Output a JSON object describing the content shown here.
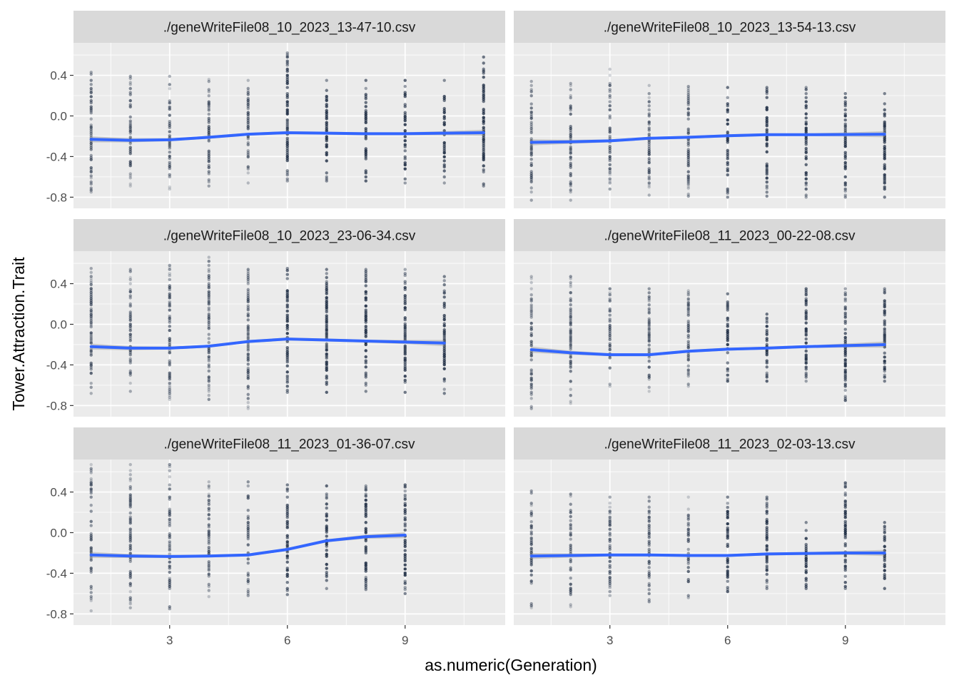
{
  "chart_data": {
    "type": "scatter",
    "facet_layout": "3 rows x 2 columns",
    "xlabel": "as.numeric(Generation)",
    "ylabel": "Tower.Attraction.Trait",
    "xlim": [
      0.55,
      11.55
    ],
    "ylim": [
      -0.91,
      0.72
    ],
    "x_ticks": [
      3,
      6,
      9
    ],
    "y_ticks": [
      0.4,
      0.0,
      -0.4,
      -0.8
    ],
    "y_tick_labels": [
      "0.4",
      "0.0",
      "-0.4",
      "-0.8"
    ],
    "grid": true,
    "colors": {
      "panel_background": "#ebebeb",
      "strip_background": "#d9d9d9",
      "gridline": "#ffffff",
      "point": "#1b2a41",
      "smooth_line": "#3366ff",
      "confidence_band": "#999999"
    },
    "panels": [
      {
        "strip": "./geneWriteFile08_10_2023_13-47-10.csv",
        "generations": [
          1,
          2,
          3,
          4,
          5,
          6,
          7,
          8,
          9,
          10,
          11
        ],
        "point_ymin": [
          -0.75,
          -0.69,
          -0.72,
          -0.69,
          -0.66,
          -0.64,
          -0.64,
          -0.64,
          -0.66,
          -0.66,
          -0.69
        ],
        "point_ymax": [
          0.43,
          0.39,
          0.39,
          0.36,
          0.35,
          0.62,
          0.35,
          0.35,
          0.35,
          0.35,
          0.58
        ],
        "trend_x": [
          1,
          2,
          3,
          4,
          5,
          6,
          7,
          8,
          9,
          10,
          11
        ],
        "trend_y": [
          -0.23,
          -0.24,
          -0.235,
          -0.21,
          -0.18,
          -0.165,
          -0.17,
          -0.175,
          -0.175,
          -0.17,
          -0.165
        ]
      },
      {
        "strip": "./geneWriteFile08_10_2023_13-54-13.csv",
        "generations": [
          1,
          2,
          3,
          4,
          5,
          6,
          7,
          8,
          9,
          10
        ],
        "point_ymin": [
          -0.83,
          -0.83,
          -0.72,
          -0.78,
          -0.79,
          -0.8,
          -0.79,
          -0.8,
          -0.8,
          -0.8
        ],
        "point_ymax": [
          0.34,
          0.32,
          0.46,
          0.3,
          0.29,
          0.28,
          0.28,
          0.28,
          0.22,
          0.22
        ],
        "trend_x": [
          1,
          2,
          3,
          4,
          5,
          6,
          7,
          8,
          9,
          10
        ],
        "trend_y": [
          -0.26,
          -0.255,
          -0.245,
          -0.22,
          -0.21,
          -0.195,
          -0.185,
          -0.185,
          -0.183,
          -0.18
        ]
      },
      {
        "strip": "./geneWriteFile08_10_2023_23-06-34.csv",
        "generations": [
          1,
          2,
          3,
          4,
          5,
          6,
          7,
          8,
          9,
          10
        ],
        "point_ymin": [
          -0.68,
          -0.66,
          -0.74,
          -0.74,
          -0.83,
          -0.67,
          -0.67,
          -0.66,
          -0.67,
          -0.68
        ],
        "point_ymax": [
          0.55,
          0.54,
          0.58,
          0.66,
          0.54,
          0.55,
          0.54,
          0.54,
          0.54,
          0.47
        ],
        "trend_x": [
          1,
          2,
          3,
          4,
          5,
          6,
          7,
          8,
          9,
          10
        ],
        "trend_y": [
          -0.22,
          -0.235,
          -0.235,
          -0.215,
          -0.17,
          -0.145,
          -0.155,
          -0.165,
          -0.175,
          -0.185
        ]
      },
      {
        "strip": "./geneWriteFile08_11_2023_00-22-08.csv",
        "generations": [
          1,
          2,
          3,
          4,
          5,
          6,
          7,
          8,
          9,
          10
        ],
        "point_ymin": [
          -0.83,
          -0.78,
          -0.61,
          -0.66,
          -0.61,
          -0.56,
          -0.56,
          -0.56,
          -0.75,
          -0.56
        ],
        "point_ymax": [
          0.47,
          0.47,
          0.35,
          0.35,
          0.33,
          0.3,
          0.1,
          0.35,
          0.35,
          0.35
        ],
        "trend_x": [
          1,
          2,
          3,
          4,
          5,
          6,
          7,
          8,
          9,
          10
        ],
        "trend_y": [
          -0.25,
          -0.28,
          -0.3,
          -0.3,
          -0.265,
          -0.245,
          -0.235,
          -0.22,
          -0.21,
          -0.2
        ]
      },
      {
        "strip": "./geneWriteFile08_11_2023_01-36-07.csv",
        "generations": [
          1,
          2,
          3,
          4,
          5,
          6,
          7,
          8,
          9
        ],
        "point_ymin": [
          -0.77,
          -0.74,
          -0.75,
          -0.63,
          -0.62,
          -0.61,
          -0.55,
          -0.56,
          -0.6
        ],
        "point_ymax": [
          0.67,
          0.67,
          0.67,
          0.5,
          0.5,
          0.47,
          0.46,
          0.46,
          0.47
        ],
        "trend_x": [
          1,
          2,
          3,
          4,
          5,
          6,
          7,
          8,
          9
        ],
        "trend_y": [
          -0.22,
          -0.23,
          -0.235,
          -0.23,
          -0.22,
          -0.165,
          -0.08,
          -0.04,
          -0.025
        ]
      },
      {
        "strip": "./geneWriteFile08_11_2023_02-03-13.csv",
        "generations": [
          1,
          2,
          3,
          4,
          5,
          6,
          7,
          8,
          9,
          10
        ],
        "point_ymin": [
          -0.74,
          -0.73,
          -0.62,
          -0.68,
          -0.64,
          -0.58,
          -0.55,
          -0.55,
          -0.55,
          -0.55
        ],
        "point_ymax": [
          0.41,
          0.38,
          0.35,
          0.35,
          0.35,
          0.35,
          0.35,
          0.1,
          0.49,
          0.1
        ],
        "trend_x": [
          1,
          2,
          3,
          4,
          5,
          6,
          7,
          8,
          9,
          10
        ],
        "trend_y": [
          -0.23,
          -0.225,
          -0.22,
          -0.22,
          -0.225,
          -0.225,
          -0.21,
          -0.205,
          -0.2,
          -0.2
        ]
      }
    ]
  }
}
